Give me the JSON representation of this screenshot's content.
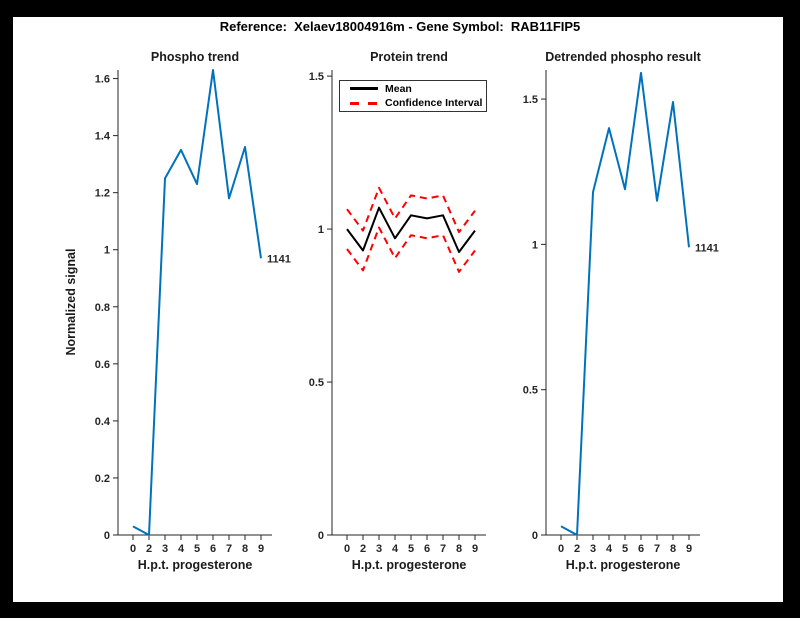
{
  "figure_title": "Reference:  Xelaev18004916m - Gene Symbol:  RAB11FIP5",
  "colors": {
    "frame": "#000000",
    "background": "#ffffff",
    "axis": "#262626",
    "blue": "#0072BD",
    "red": "#ff0000",
    "black": "#000000"
  },
  "chart_data": [
    {
      "type": "line",
      "title": "Phospho trend",
      "xlabel": "H.p.t. progesterone",
      "ylabel": "Normalized signal",
      "x_values": [
        0,
        2,
        3,
        4,
        5,
        6,
        7,
        8,
        9
      ],
      "x_tick_labels": [
        "0",
        "2",
        "3",
        "4",
        "5",
        "6",
        "7",
        "8",
        "9"
      ],
      "ylim": [
        0,
        1.63
      ],
      "ytick_values": [
        0,
        0.2,
        0.4,
        0.6,
        0.8,
        1,
        1.2,
        1.4,
        1.6
      ],
      "ytick_labels": [
        "0",
        "0.2",
        "0.4",
        "0.6",
        "0.8",
        "1",
        "1.2",
        "1.4",
        "1.6"
      ],
      "grid": false,
      "series": [
        {
          "name": "Phospho signal",
          "color": "#0072BD",
          "dash": false,
          "values": [
            0.03,
            0.0,
            1.25,
            1.35,
            1.23,
            1.63,
            1.18,
            1.36,
            0.97
          ]
        }
      ],
      "end_label": "1141"
    },
    {
      "type": "line",
      "title": "Protein trend",
      "xlabel": "H.p.t. progesterone",
      "ylabel": "",
      "x_values": [
        0,
        2,
        3,
        4,
        5,
        6,
        7,
        8,
        9
      ],
      "x_tick_labels": [
        "0",
        "2",
        "3",
        "4",
        "5",
        "6",
        "7",
        "8",
        "9"
      ],
      "ylim": [
        0,
        1.52
      ],
      "ytick_values": [
        0,
        0.5,
        1,
        1.5
      ],
      "ytick_labels": [
        "0",
        "0.5",
        "1",
        "1.5"
      ],
      "grid": false,
      "legend": {
        "position": "northwest",
        "entries": [
          "Mean",
          "Confidence Interval"
        ]
      },
      "series": [
        {
          "name": "Confidence Interval upper",
          "color": "#ff0000",
          "dash": true,
          "values": [
            1.065,
            0.995,
            1.135,
            1.035,
            1.11,
            1.1,
            1.11,
            0.99,
            1.06
          ]
        },
        {
          "name": "Confidence Interval lower",
          "color": "#ff0000",
          "dash": true,
          "values": [
            0.935,
            0.865,
            1.005,
            0.905,
            0.98,
            0.97,
            0.98,
            0.86,
            0.93
          ]
        },
        {
          "name": "Mean",
          "color": "#000000",
          "dash": false,
          "values": [
            1.0,
            0.93,
            1.07,
            0.97,
            1.045,
            1.035,
            1.045,
            0.925,
            0.995
          ]
        }
      ],
      "end_label": ""
    },
    {
      "type": "line",
      "title": "Detrended phospho result",
      "xlabel": "H.p.t. progesterone",
      "ylabel": "",
      "x_values": [
        0,
        2,
        3,
        4,
        5,
        6,
        7,
        8,
        9
      ],
      "x_tick_labels": [
        "0",
        "2",
        "3",
        "4",
        "5",
        "6",
        "7",
        "8",
        "9"
      ],
      "ylim": [
        0,
        1.6
      ],
      "ytick_values": [
        0,
        0.5,
        1,
        1.5
      ],
      "ytick_labels": [
        "0",
        "0.5",
        "1",
        "1.5"
      ],
      "grid": false,
      "series": [
        {
          "name": "Detrended phospho signal",
          "color": "#0072BD",
          "dash": false,
          "values": [
            0.03,
            0.0,
            1.18,
            1.4,
            1.19,
            1.59,
            1.15,
            1.49,
            0.99
          ]
        }
      ],
      "end_label": "1141"
    }
  ]
}
